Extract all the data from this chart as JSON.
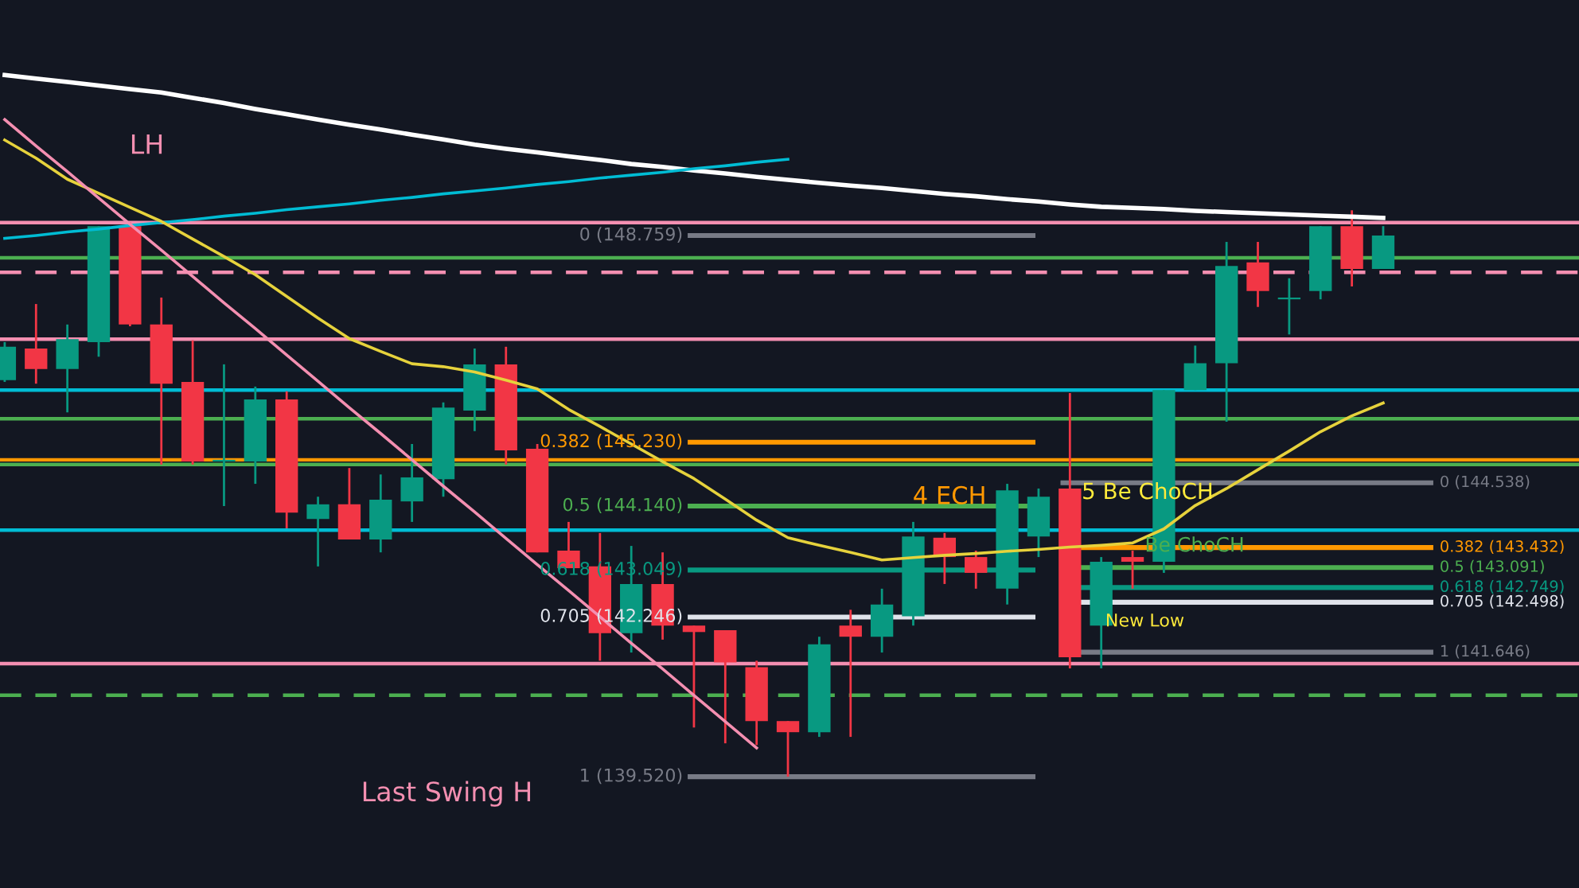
{
  "chart_data": {
    "type": "candlestick",
    "tick_labels": false,
    "categories": [
      null,
      null,
      null,
      null,
      null,
      null,
      null,
      null,
      null,
      null,
      null,
      null,
      null,
      null,
      null,
      null,
      null,
      null,
      null,
      null,
      null,
      null,
      null,
      null,
      null,
      null,
      null,
      null,
      null,
      null,
      null,
      null,
      null,
      null,
      null,
      null,
      null,
      null,
      null,
      null,
      null,
      null,
      null,
      null,
      null
    ],
    "ylim": [
      137.62,
      152.78
    ],
    "ohlc": [
      [
        146.29,
        146.94,
        146.26,
        146.86
      ],
      [
        146.83,
        147.59,
        146.23,
        146.48
      ],
      [
        146.48,
        147.24,
        145.74,
        146.99
      ],
      [
        146.94,
        148.92,
        146.69,
        148.92
      ],
      [
        148.92,
        148.98,
        147.21,
        147.24
      ],
      [
        147.24,
        147.7,
        144.85,
        146.23
      ],
      [
        146.26,
        146.97,
        144.85,
        144.9
      ],
      [
        144.9,
        146.56,
        144.14,
        144.93
      ],
      [
        144.9,
        146.18,
        144.52,
        145.96
      ],
      [
        145.96,
        146.1,
        143.76,
        144.03
      ],
      [
        143.92,
        144.3,
        143.11,
        144.17
      ],
      [
        144.17,
        144.79,
        143.57,
        143.57
      ],
      [
        143.57,
        144.68,
        143.35,
        144.25
      ],
      [
        144.22,
        145.2,
        143.87,
        144.63
      ],
      [
        144.6,
        145.91,
        144.3,
        145.82
      ],
      [
        145.77,
        146.83,
        145.42,
        146.56
      ],
      [
        146.56,
        146.86,
        144.85,
        145.09
      ],
      [
        145.12,
        145.2,
        143.35,
        143.35
      ],
      [
        143.38,
        143.87,
        143.08,
        143.08
      ],
      [
        143.11,
        143.68,
        141.5,
        141.97
      ],
      [
        141.97,
        143.46,
        141.64,
        142.81
      ],
      [
        142.81,
        143.35,
        141.86,
        142.1
      ],
      [
        142.1,
        142.1,
        140.36,
        141.99
      ],
      [
        142.02,
        142.02,
        140.09,
        141.47
      ],
      [
        141.39,
        141.5,
        140.06,
        140.47
      ],
      [
        140.47,
        140.47,
        139.52,
        140.28
      ],
      [
        140.28,
        141.91,
        140.2,
        141.78
      ],
      [
        142.1,
        142.37,
        140.2,
        141.91
      ],
      [
        141.91,
        142.73,
        141.64,
        142.46
      ],
      [
        142.26,
        143.87,
        142.1,
        143.62
      ],
      [
        143.6,
        143.68,
        142.81,
        143.27
      ],
      [
        143.27,
        143.38,
        142.73,
        143.0
      ],
      [
        142.73,
        144.52,
        142.46,
        144.41
      ],
      [
        143.62,
        144.44,
        143.27,
        144.3
      ],
      [
        144.44,
        146.07,
        141.37,
        141.56
      ],
      [
        142.1,
        143.27,
        141.37,
        143.19
      ],
      [
        143.27,
        143.38,
        142.73,
        143.19
      ],
      [
        143.19,
        146.12,
        143.0,
        146.12
      ],
      [
        146.12,
        146.88,
        146.12,
        146.58
      ],
      [
        146.58,
        148.65,
        145.58,
        148.24
      ],
      [
        148.3,
        148.65,
        147.54,
        147.81
      ],
      [
        147.67,
        148.03,
        147.07,
        147.7
      ],
      [
        147.81,
        148.92,
        147.67,
        148.92
      ],
      [
        148.92,
        149.19,
        147.89,
        148.19
      ],
      [
        148.19,
        148.92,
        148.19,
        148.76
      ]
    ],
    "series": [
      {
        "type": "line",
        "color": "#ffffff",
        "values": [
          151.5,
          151.44,
          151.38,
          151.32,
          151.26,
          151.2,
          151.11,
          151.02,
          150.92,
          150.83,
          150.74,
          150.65,
          150.57,
          150.48,
          150.4,
          150.31,
          150.24,
          150.18,
          150.11,
          150.05,
          149.98,
          149.93,
          149.87,
          149.82,
          149.76,
          149.71,
          149.66,
          149.61,
          149.57,
          149.52,
          149.47,
          149.43,
          149.38,
          149.34,
          149.29,
          149.25,
          149.23,
          149.21,
          149.18,
          149.16,
          149.14,
          149.12,
          149.1,
          149.08,
          149.06
        ]
      },
      {
        "type": "line",
        "color": "#00bcd4",
        "values": [
          148.71,
          148.76,
          148.82,
          148.87,
          148.93,
          148.98,
          149.03,
          149.09,
          149.14,
          149.2,
          149.25,
          149.3,
          149.36,
          149.41,
          149.47,
          149.52,
          149.57,
          149.63,
          149.68,
          149.74,
          149.79,
          149.84,
          149.9,
          149.95,
          150.01,
          150.06,
          null,
          null,
          null,
          null,
          null,
          null,
          null,
          null,
          null,
          null,
          null,
          null,
          null,
          null,
          null,
          null,
          null,
          null,
          null
        ]
      },
      {
        "type": "line",
        "color": "#e6d23c",
        "values": [
          150.39,
          150.08,
          149.72,
          149.48,
          149.24,
          149.0,
          148.7,
          148.4,
          148.09,
          147.72,
          147.35,
          147.0,
          146.78,
          146.57,
          146.52,
          146.43,
          146.29,
          146.14,
          145.79,
          145.5,
          145.2,
          144.9,
          144.61,
          144.26,
          143.9,
          143.6,
          143.47,
          143.35,
          143.22,
          143.26,
          143.3,
          143.33,
          143.37,
          143.4,
          143.44,
          143.47,
          143.51,
          143.75,
          144.15,
          144.44,
          144.76,
          145.08,
          145.41,
          145.68,
          145.9
        ]
      },
      {
        "type": "line",
        "color": "#f48fb1",
        "values": [
          150.74,
          150.29,
          149.85,
          149.4,
          148.95,
          148.51,
          148.06,
          147.61,
          147.17,
          146.72,
          146.27,
          145.82,
          145.38,
          144.93,
          144.48,
          144.04,
          143.59,
          143.14,
          142.7,
          142.25,
          141.8,
          141.36,
          140.91,
          140.46,
          140.01,
          null,
          null,
          null,
          null,
          null,
          null,
          null,
          null,
          null,
          null,
          null,
          null,
          null,
          null,
          null,
          null,
          null,
          null,
          null,
          null
        ]
      }
    ],
    "ref_lines": [
      {
        "axis": "y",
        "value": 148.759,
        "label": "0 (148.759)",
        "color": "#787b86"
      },
      {
        "axis": "y",
        "value": 145.23,
        "label": "0.382 (145.230)",
        "color": "#ff9800"
      },
      {
        "axis": "y",
        "value": 144.14,
        "label": "0.5 (144.140)",
        "color": "#4caf50"
      },
      {
        "axis": "y",
        "value": 143.049,
        "label": "0.618 (143.049)",
        "color": "#089981"
      },
      {
        "axis": "y",
        "value": 142.246,
        "label": "0.705 (142.246)",
        "color": "#e0e3eb"
      },
      {
        "axis": "y",
        "value": 139.52,
        "label": "1 (139.520)",
        "color": "#787b86"
      },
      {
        "axis": "y",
        "value": 144.538,
        "label": "0 (144.538)",
        "color": "#787b86"
      },
      {
        "axis": "y",
        "value": 143.432,
        "label": "0.382 (143.432)",
        "color": "#ff9800"
      },
      {
        "axis": "y",
        "value": 143.091,
        "label": "0.5 (143.091)",
        "color": "#4caf50"
      },
      {
        "axis": "y",
        "value": 142.749,
        "label": "0.618 (142.749)",
        "color": "#089981"
      },
      {
        "axis": "y",
        "value": 142.498,
        "label": "0.705 (142.498)",
        "color": "#e0e3eb"
      },
      {
        "axis": "y",
        "value": 141.646,
        "label": "1 (141.646)",
        "color": "#787b86"
      },
      {
        "axis": "y",
        "value": 148.98,
        "color": "#f48fb1"
      },
      {
        "axis": "y",
        "value": 148.38,
        "color": "#4caf50"
      },
      {
        "axis": "y",
        "value": 146.99,
        "color": "#f48fb1"
      },
      {
        "axis": "y",
        "value": 146.12,
        "color": "#00bcd4"
      },
      {
        "axis": "y",
        "value": 144.85,
        "color": "#4caf50"
      },
      {
        "axis": "y",
        "value": 143.73,
        "color": "#00bcd4"
      },
      {
        "axis": "y",
        "value": 141.45,
        "color": "#f48fb1"
      },
      {
        "axis": "y",
        "value": 148.13,
        "color": "#f48fb1",
        "line_style": "dashed"
      },
      {
        "axis": "y",
        "value": 140.91,
        "color": "#4caf50",
        "line_style": "dashed"
      },
      {
        "axis": "y",
        "value": 145.63,
        "color": "#4caf50"
      },
      {
        "axis": "y",
        "value": 144.93,
        "color": "#ff9800"
      }
    ],
    "annotations": [
      "LH",
      "Last Swing H",
      "4 ECH",
      "5 Be ChoCH",
      "Be ChoCH",
      "New Low"
    ]
  }
}
